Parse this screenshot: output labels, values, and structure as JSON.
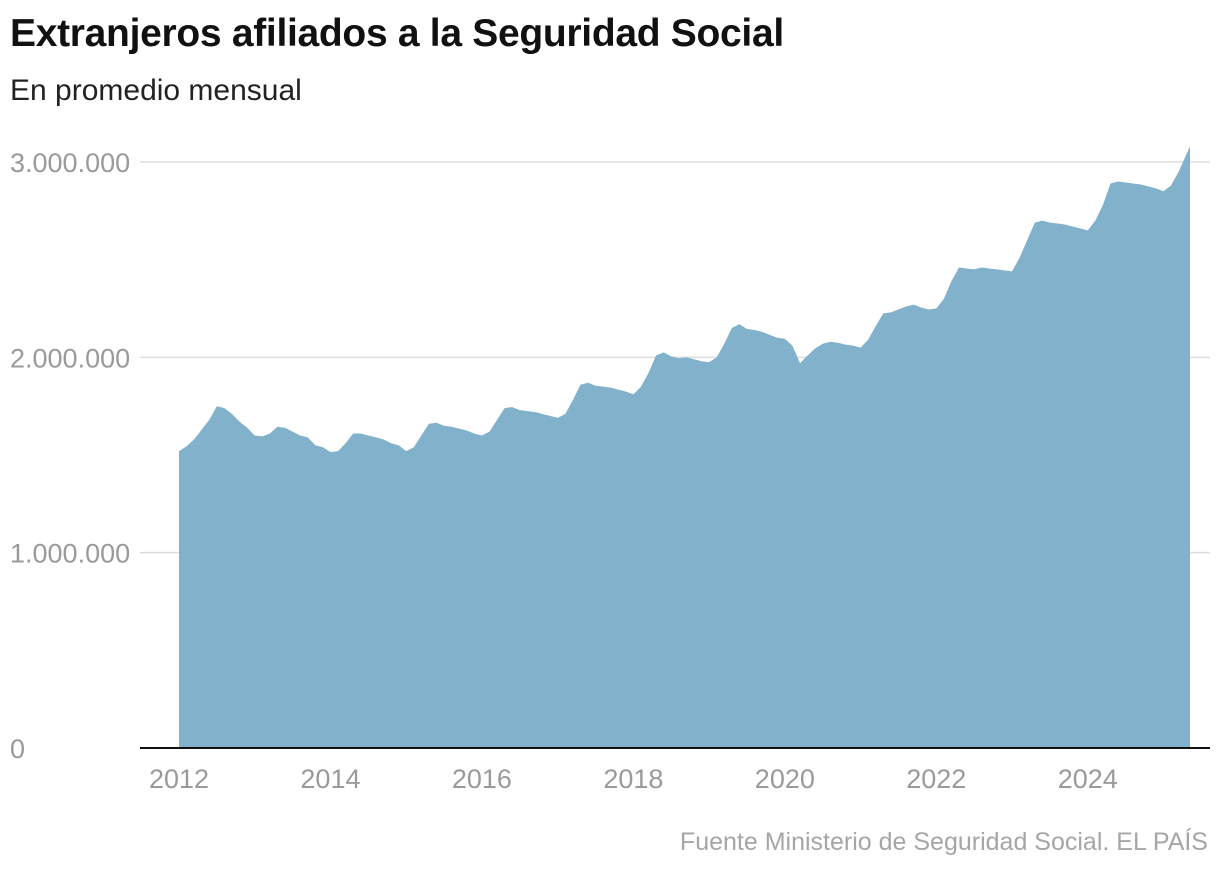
{
  "title": "Extranjeros afiliados a la Seguridad Social",
  "subtitle": "En promedio mensual",
  "source": "Fuente Ministerio de Seguridad Social. EL PAÍS",
  "colors": {
    "area": "#81b1cb",
    "grid": "#dddddd",
    "axis": "#111111",
    "tick": "#9a9a9a"
  },
  "chart_data": {
    "type": "area",
    "title": "Extranjeros afiliados a la Seguridad Social",
    "subtitle": "En promedio mensual",
    "xlabel": "",
    "ylabel": "",
    "ylim": [
      0,
      3000000
    ],
    "yticks": [
      0,
      1000000,
      2000000,
      3000000
    ],
    "ytick_labels": [
      "0",
      "1.000.000",
      "2.000.000",
      "3.000.000"
    ],
    "xlim": [
      2012.0,
      2025.35
    ],
    "xticks": [
      2012,
      2014,
      2016,
      2018,
      2020,
      2022,
      2024
    ],
    "xtick_labels": [
      "2012",
      "2014",
      "2016",
      "2018",
      "2020",
      "2022",
      "2024"
    ],
    "grid": true,
    "series": [
      {
        "name": "Extranjeros afiliados",
        "x": [
          2012.0,
          2012.1,
          2012.2,
          2012.3,
          2012.4,
          2012.5,
          2012.6,
          2012.7,
          2012.8,
          2012.9,
          2013.0,
          2013.1,
          2013.2,
          2013.3,
          2013.4,
          2013.5,
          2013.6,
          2013.7,
          2013.8,
          2013.9,
          2014.0,
          2014.1,
          2014.2,
          2014.3,
          2014.4,
          2014.5,
          2014.6,
          2014.7,
          2014.8,
          2014.9,
          2015.0,
          2015.1,
          2015.2,
          2015.3,
          2015.4,
          2015.5,
          2015.6,
          2015.7,
          2015.8,
          2015.9,
          2016.0,
          2016.1,
          2016.2,
          2016.3,
          2016.4,
          2016.5,
          2016.6,
          2016.7,
          2016.8,
          2016.9,
          2017.0,
          2017.1,
          2017.2,
          2017.3,
          2017.4,
          2017.5,
          2017.6,
          2017.7,
          2017.8,
          2017.9,
          2018.0,
          2018.1,
          2018.2,
          2018.3,
          2018.4,
          2018.5,
          2018.6,
          2018.7,
          2018.8,
          2018.9,
          2019.0,
          2019.1,
          2019.2,
          2019.3,
          2019.4,
          2019.5,
          2019.6,
          2019.7,
          2019.8,
          2019.9,
          2020.0,
          2020.1,
          2020.2,
          2020.3,
          2020.4,
          2020.5,
          2020.6,
          2020.7,
          2020.8,
          2020.9,
          2021.0,
          2021.1,
          2021.2,
          2021.3,
          2021.4,
          2021.5,
          2021.6,
          2021.7,
          2021.8,
          2021.9,
          2022.0,
          2022.1,
          2022.2,
          2022.3,
          2022.4,
          2022.5,
          2022.6,
          2022.7,
          2022.8,
          2022.9,
          2023.0,
          2023.1,
          2023.2,
          2023.3,
          2023.4,
          2023.5,
          2023.6,
          2023.7,
          2023.8,
          2023.9,
          2024.0,
          2024.1,
          2024.2,
          2024.3,
          2024.4,
          2024.5,
          2024.6,
          2024.7,
          2024.8,
          2024.9,
          2025.0,
          2025.1,
          2025.2,
          2025.35
        ],
        "values": [
          1520000,
          1545000,
          1580000,
          1630000,
          1680000,
          1750000,
          1740000,
          1710000,
          1670000,
          1640000,
          1600000,
          1595000,
          1610000,
          1645000,
          1640000,
          1620000,
          1600000,
          1590000,
          1550000,
          1540000,
          1515000,
          1520000,
          1560000,
          1610000,
          1610000,
          1600000,
          1590000,
          1580000,
          1560000,
          1550000,
          1520000,
          1540000,
          1600000,
          1660000,
          1665000,
          1650000,
          1645000,
          1635000,
          1625000,
          1610000,
          1600000,
          1620000,
          1680000,
          1740000,
          1745000,
          1730000,
          1725000,
          1720000,
          1710000,
          1700000,
          1690000,
          1710000,
          1780000,
          1860000,
          1870000,
          1855000,
          1850000,
          1845000,
          1835000,
          1825000,
          1810000,
          1850000,
          1920000,
          2010000,
          2025000,
          2005000,
          1995000,
          2000000,
          1990000,
          1980000,
          1975000,
          2000000,
          2070000,
          2150000,
          2170000,
          2145000,
          2140000,
          2130000,
          2115000,
          2100000,
          2095000,
          2060000,
          1970000,
          2010000,
          2045000,
          2070000,
          2080000,
          2075000,
          2065000,
          2060000,
          2050000,
          2090000,
          2160000,
          2225000,
          2230000,
          2245000,
          2260000,
          2270000,
          2255000,
          2245000,
          2250000,
          2300000,
          2390000,
          2460000,
          2455000,
          2450000,
          2460000,
          2455000,
          2450000,
          2445000,
          2440000,
          2510000,
          2600000,
          2690000,
          2700000,
          2690000,
          2685000,
          2680000,
          2670000,
          2660000,
          2650000,
          2700000,
          2780000,
          2890000,
          2900000,
          2895000,
          2890000,
          2885000,
          2875000,
          2865000,
          2850000,
          2880000,
          2950000,
          3080000
        ]
      }
    ]
  }
}
